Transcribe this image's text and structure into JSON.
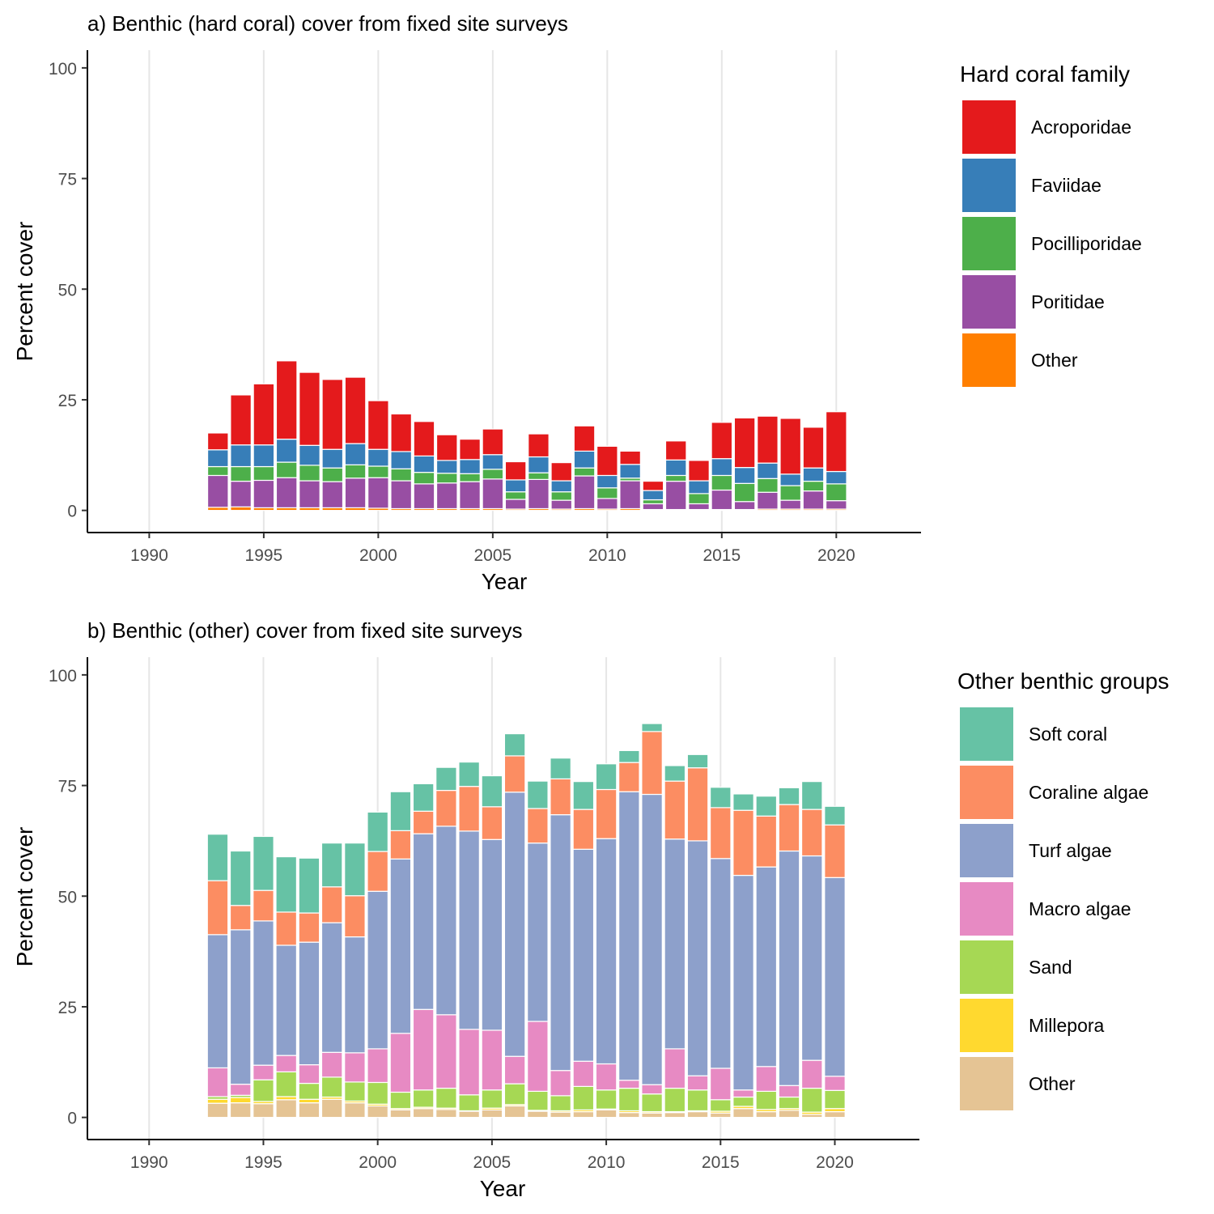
{
  "chart_data": [
    {
      "type": "bar",
      "stacked": true,
      "title": "a) Benthic (hard coral) cover from fixed site surveys",
      "xlabel": "Year",
      "ylabel": "Percent cover",
      "xlim": [
        1987.3,
        2023.7
      ],
      "ylim": [
        -5,
        104
      ],
      "x_ticks": [
        1990,
        1995,
        2000,
        2005,
        2010,
        2015,
        2020
      ],
      "y_ticks": [
        0,
        25,
        50,
        75,
        100
      ],
      "grid": "vertical major",
      "legend_title": "Hard coral family",
      "legend_position": "right",
      "x": [
        1993,
        1994,
        1995,
        1996,
        1997,
        1998,
        1999,
        2000,
        2001,
        2002,
        2003,
        2004,
        2005,
        2006,
        2007,
        2008,
        2009,
        2010,
        2011,
        2012,
        2013,
        2014,
        2015,
        2016,
        2017,
        2018,
        2019,
        2020
      ],
      "series": [
        {
          "name": "Other",
          "color": "#FF7F00",
          "values": [
            0.7,
            0.8,
            0.6,
            0.6,
            0.6,
            0.6,
            0.6,
            0.5,
            0.4,
            0.4,
            0.4,
            0.4,
            0.4,
            0.3,
            0.4,
            0.3,
            0.4,
            0.3,
            0.4,
            0.2,
            0.2,
            0.2,
            0.2,
            0.2,
            0.3,
            0.3,
            0.3,
            0.3
          ]
        },
        {
          "name": "Poritidae",
          "color": "#984EA3",
          "values": [
            7.2,
            5.8,
            6.2,
            6.8,
            6.1,
            5.9,
            6.7,
            6.9,
            6.3,
            5.6,
            5.8,
            6.1,
            6.7,
            2.2,
            6.6,
            2.0,
            7.4,
            2.4,
            6.3,
            1.3,
            6.4,
            1.3,
            4.4,
            1.8,
            3.8,
            2.0,
            4.1,
            1.9
          ]
        },
        {
          "name": "Pocilliporidae",
          "color": "#4DAF4A",
          "values": [
            2.0,
            3.3,
            3.1,
            3.5,
            3.5,
            3.1,
            3.0,
            2.6,
            2.7,
            2.6,
            2.2,
            1.8,
            2.2,
            1.7,
            1.5,
            1.9,
            1.8,
            2.4,
            0.6,
            0.9,
            1.3,
            2.3,
            3.3,
            4.1,
            3.1,
            3.3,
            2.2,
            3.8
          ]
        },
        {
          "name": "Faviidae",
          "color": "#377EB8",
          "values": [
            3.8,
            4.9,
            4.9,
            5.2,
            4.5,
            4.2,
            4.8,
            3.8,
            3.9,
            3.7,
            2.9,
            3.2,
            3.3,
            2.7,
            3.6,
            2.5,
            3.8,
            2.8,
            3.1,
            2.1,
            3.5,
            2.9,
            3.8,
            3.6,
            3.5,
            2.6,
            3.0,
            2.8
          ]
        },
        {
          "name": "Acroporidae",
          "color": "#E41A1C",
          "values": [
            3.8,
            11.3,
            13.8,
            17.7,
            16.5,
            15.8,
            15.0,
            11.0,
            8.5,
            7.8,
            5.8,
            4.6,
            5.8,
            4.1,
            5.2,
            4.1,
            5.7,
            6.6,
            3.0,
            2.1,
            4.3,
            4.6,
            8.2,
            11.2,
            10.6,
            12.6,
            9.2,
            13.5
          ]
        }
      ]
    },
    {
      "type": "bar",
      "stacked": true,
      "title": "b) Benthic (other) cover from fixed site surveys",
      "xlabel": "Year",
      "ylabel": "Percent cover",
      "xlim": [
        1987.3,
        2023.7
      ],
      "ylim": [
        -5,
        104
      ],
      "x_ticks": [
        1990,
        1995,
        2000,
        2005,
        2010,
        2015,
        2020
      ],
      "y_ticks": [
        0,
        25,
        50,
        75,
        100
      ],
      "grid": "vertical major",
      "legend_title": "Other benthic groups",
      "legend_position": "right",
      "x": [
        1993,
        1994,
        1995,
        1996,
        1997,
        1998,
        1999,
        2000,
        2001,
        2002,
        2003,
        2004,
        2005,
        2006,
        2007,
        2008,
        2009,
        2010,
        2011,
        2012,
        2013,
        2014,
        2015,
        2016,
        2017,
        2018,
        2019,
        2020
      ],
      "series": [
        {
          "name": "Other",
          "color": "#E5C494",
          "values": [
            3.2,
            3.3,
            3.1,
            4.0,
            3.3,
            4.1,
            3.3,
            2.6,
            1.7,
            2.0,
            1.8,
            1.4,
            1.7,
            2.6,
            1.4,
            1.2,
            1.3,
            1.7,
            1.1,
            1.0,
            1.1,
            1.3,
            1.0,
            2.0,
            1.3,
            1.6,
            0.7,
            1.3
          ]
        },
        {
          "name": "Millepora",
          "color": "#FFD92F",
          "values": [
            0.9,
            1.2,
            0.5,
            0.7,
            0.8,
            0.5,
            0.4,
            0.4,
            0.3,
            0.3,
            0.3,
            0.1,
            0.4,
            0.3,
            0.2,
            0.3,
            0.4,
            0.2,
            0.4,
            0.3,
            0.2,
            0.2,
            0.4,
            0.5,
            0.5,
            0.4,
            0.5,
            0.7
          ]
        },
        {
          "name": "Sand",
          "color": "#A6D854",
          "values": [
            0.6,
            0.5,
            4.9,
            5.6,
            3.6,
            4.5,
            4.3,
            4.9,
            3.7,
            3.9,
            4.5,
            3.6,
            4.1,
            4.7,
            4.3,
            3.4,
            5.3,
            4.3,
            5.1,
            4.0,
            5.3,
            4.7,
            2.6,
            2.1,
            4.1,
            2.6,
            5.4,
            4.1
          ]
        },
        {
          "name": "Macro algae",
          "color": "#E78AC3",
          "values": [
            6.5,
            2.5,
            3.3,
            3.7,
            4.2,
            5.6,
            6.6,
            7.6,
            13.3,
            18.2,
            16.6,
            14.8,
            13.5,
            6.2,
            15.8,
            5.7,
            5.7,
            5.9,
            1.8,
            2.1,
            8.9,
            3.2,
            7.1,
            1.6,
            5.6,
            2.6,
            6.3,
            3.2
          ]
        },
        {
          "name": "Turf algae",
          "color": "#8DA0CB",
          "values": [
            30.1,
            34.9,
            32.6,
            24.9,
            27.7,
            29.3,
            26.2,
            35.6,
            39.4,
            39.7,
            42.6,
            44.8,
            43.1,
            59.7,
            40.3,
            57.8,
            47.9,
            50.9,
            65.2,
            65.6,
            47.4,
            53.1,
            47.4,
            48.5,
            45.1,
            53.0,
            46.2,
            44.9
          ]
        },
        {
          "name": "Coraline algae",
          "color": "#FC8D62",
          "values": [
            12.2,
            5.5,
            6.9,
            7.5,
            6.6,
            8.1,
            9.3,
            9.0,
            6.4,
            5.1,
            8.1,
            10.1,
            7.4,
            8.2,
            7.8,
            8.1,
            9.0,
            11.1,
            6.6,
            14.2,
            13.1,
            16.5,
            11.5,
            14.7,
            11.5,
            10.5,
            10.5,
            11.9
          ]
        },
        {
          "name": "Soft coral",
          "color": "#66C2A5",
          "values": [
            10.5,
            12.3,
            12.2,
            12.5,
            12.4,
            9.9,
            11.9,
            8.9,
            8.8,
            6.2,
            5.2,
            5.5,
            7.0,
            5.0,
            6.2,
            4.7,
            6.3,
            5.8,
            2.7,
            1.8,
            3.5,
            3.0,
            4.6,
            3.7,
            4.5,
            3.8,
            6.3,
            4.2
          ]
        }
      ]
    }
  ]
}
